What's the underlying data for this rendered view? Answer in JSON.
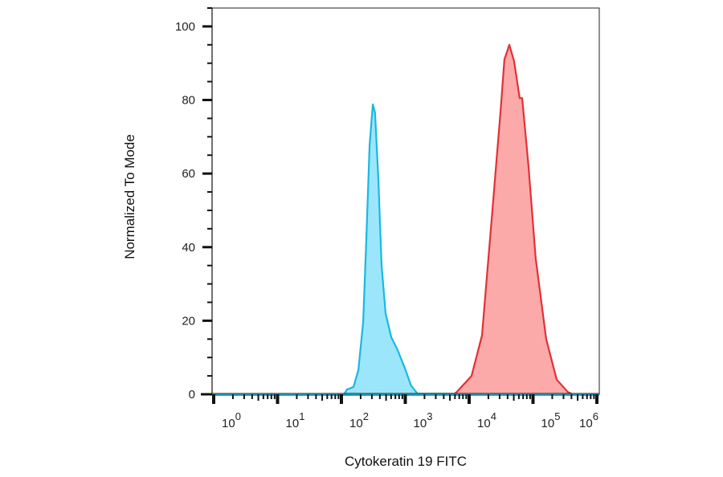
{
  "chart_data": {
    "type": "area",
    "title": "",
    "xlabel": "Cytokeratin 19 FITC",
    "ylabel": "Normalized To Mode",
    "x_scale": "log",
    "xlim": [
      1,
      1000000
    ],
    "ylim": [
      0,
      105
    ],
    "x_ticks": [
      {
        "value": 1,
        "base": "10",
        "exp": "0"
      },
      {
        "value": 10,
        "base": "10",
        "exp": "1"
      },
      {
        "value": 100,
        "base": "10",
        "exp": "2"
      },
      {
        "value": 1000,
        "base": "10",
        "exp": "3"
      },
      {
        "value": 10000,
        "base": "10",
        "exp": "4"
      },
      {
        "value": 100000,
        "base": "10",
        "exp": "5"
      },
      {
        "value": 1000000,
        "base": "10",
        "exp": "6"
      }
    ],
    "y_ticks": [
      {
        "value": 0,
        "label": "0"
      },
      {
        "value": 20,
        "label": "20"
      },
      {
        "value": 40,
        "label": "40"
      },
      {
        "value": 60,
        "label": "60"
      },
      {
        "value": 80,
        "label": "80"
      },
      {
        "value": 100,
        "label": "100"
      }
    ],
    "grid": false,
    "legend": "none",
    "series": [
      {
        "color": "#1ab8e0",
        "fill": "#9be6fb",
        "points": [
          [
            1,
            0
          ],
          [
            110,
            0
          ],
          [
            122,
            1.3
          ],
          [
            155,
            2
          ],
          [
            184,
            6.6
          ],
          [
            219,
            19.7
          ],
          [
            245,
            41.6
          ],
          [
            276,
            67.8
          ],
          [
            310,
            78.8
          ],
          [
            336,
            76.6
          ],
          [
            378,
            59
          ],
          [
            425,
            35
          ],
          [
            492,
            22
          ],
          [
            604,
            15.5
          ],
          [
            760,
            12
          ],
          [
            1000,
            6.8
          ],
          [
            1230,
            2.4
          ],
          [
            1550,
            0.2
          ],
          [
            1000000,
            0
          ]
        ]
      },
      {
        "color": "#e03236",
        "fill": "#fca9aa",
        "points": [
          [
            5800,
            0
          ],
          [
            6460,
            0.7
          ],
          [
            10900,
            5
          ],
          [
            15900,
            16
          ],
          [
            22600,
            48
          ],
          [
            31000,
            77
          ],
          [
            35700,
            91
          ],
          [
            42600,
            95
          ],
          [
            50500,
            90.6
          ],
          [
            61900,
            80.5
          ],
          [
            67600,
            80.5
          ],
          [
            85000,
            62
          ],
          [
            110000,
            37
          ],
          [
            161000,
            15
          ],
          [
            235000,
            4
          ],
          [
            352000,
            0.6
          ],
          [
            420000,
            0
          ]
        ]
      }
    ]
  }
}
